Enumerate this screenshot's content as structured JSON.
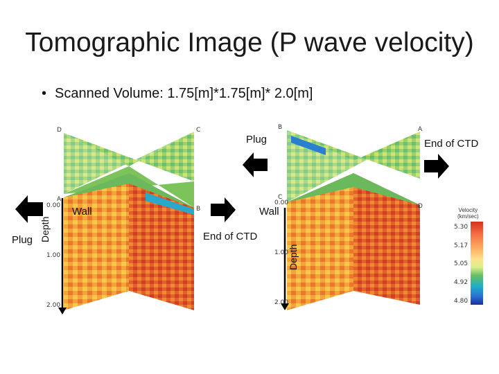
{
  "slide": {
    "title": "Tomographic Image (P wave velocity)",
    "bullet": "Scanned Volume: 1.75[m]*1.75[m]* 2.0[m]"
  },
  "labels": {
    "plug_left": "Plug",
    "plug_right": "Plug",
    "wall_left": "Wall",
    "wall_right": "Wall",
    "end_ctd_mid": "End of CTD",
    "end_ctd_right": "End of CTD",
    "depth_left": "Depth",
    "depth_right": "Depth"
  },
  "corners": {
    "left": {
      "d": "D",
      "c": "C",
      "a": "A",
      "b": "B"
    },
    "right": {
      "b": "B",
      "a": "A",
      "c": "C",
      "d": "D"
    }
  },
  "depth_ticks": [
    "0.00",
    "1.00",
    "2.00"
  ],
  "legend": {
    "title_line1": "Velocity",
    "title_line2": "(km/sec)",
    "ticks": [
      "5.30",
      "5.17",
      "5.05",
      "4.92",
      "4.80"
    ]
  },
  "colors": {
    "arrow": "#000000",
    "text": "#111111"
  }
}
